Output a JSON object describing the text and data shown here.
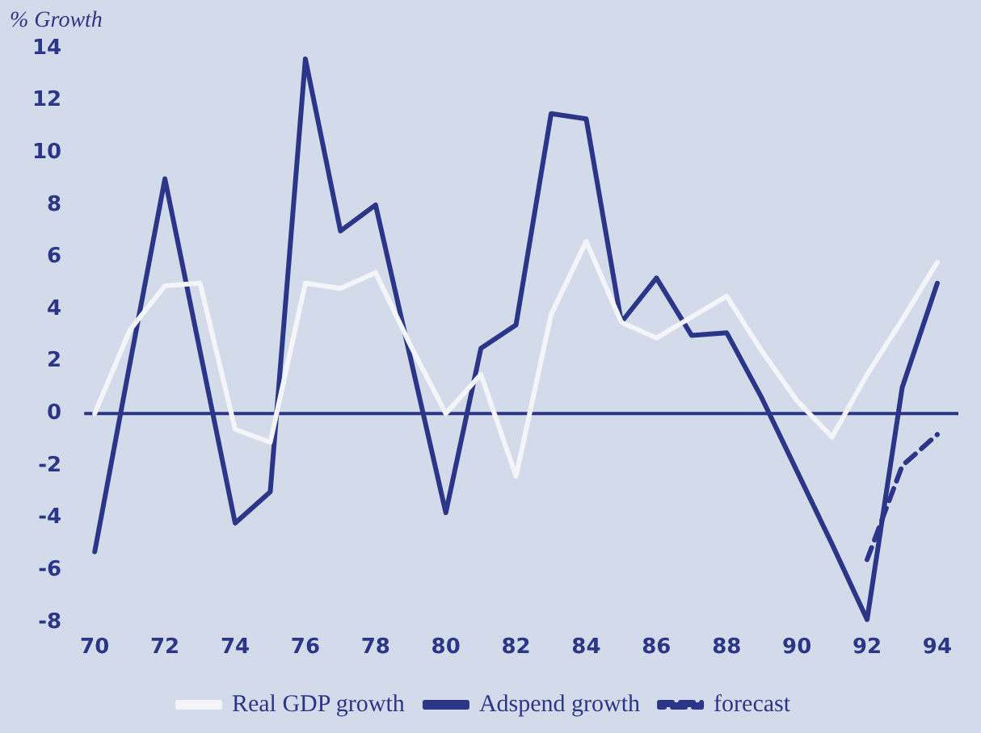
{
  "chart_data": {
    "type": "line",
    "ylabel": "% Growth",
    "x": [
      70,
      71,
      72,
      73,
      74,
      75,
      76,
      77,
      78,
      79,
      80,
      81,
      82,
      83,
      84,
      85,
      86,
      87,
      88,
      89,
      90,
      91,
      92,
      93,
      94
    ],
    "series": [
      {
        "name": "Real GDP growth",
        "color": "#f4f5f8",
        "values": [
          0,
          3.2,
          4.9,
          5,
          -0.6,
          -1.1,
          5,
          4.8,
          5.4,
          2.6,
          0,
          1.5,
          -2.4,
          3.8,
          6.6,
          3.5,
          2.9,
          3.7,
          4.5,
          2.4,
          0.5,
          -0.9,
          1.5,
          3.6,
          5.8
        ]
      },
      {
        "name": "Adspend growth",
        "color": "#2b3688",
        "values": [
          -5.3,
          1.9,
          9,
          2.4,
          -4.2,
          -3,
          13.6,
          7,
          8,
          2.1,
          -3.8,
          2.5,
          3.4,
          11.5,
          11.3,
          3.5,
          5.2,
          3,
          3.1,
          0.6,
          -2.2,
          -5,
          -7.9,
          1,
          5
        ]
      },
      {
        "name": "forecast",
        "color": "#2b3688",
        "line_style": "dashed",
        "x": [
          92,
          93,
          94
        ],
        "values": [
          -5.6,
          -2,
          -0.8
        ]
      }
    ],
    "xlim": [
      69.7,
      94.6
    ],
    "xticks": [
      70,
      72,
      74,
      76,
      78,
      80,
      82,
      84,
      86,
      88,
      90,
      92,
      94
    ],
    "ylim": [
      -8,
      14
    ],
    "yticks": [
      -8,
      -6,
      -4,
      -2,
      0,
      2,
      4,
      6,
      8,
      10,
      12,
      14
    ],
    "ref_lines": [
      {
        "axis": "y",
        "value": 0,
        "color": "#2b3688"
      }
    ],
    "grid": false,
    "legend": "bottom",
    "marker": "none",
    "line_style": "solid"
  }
}
